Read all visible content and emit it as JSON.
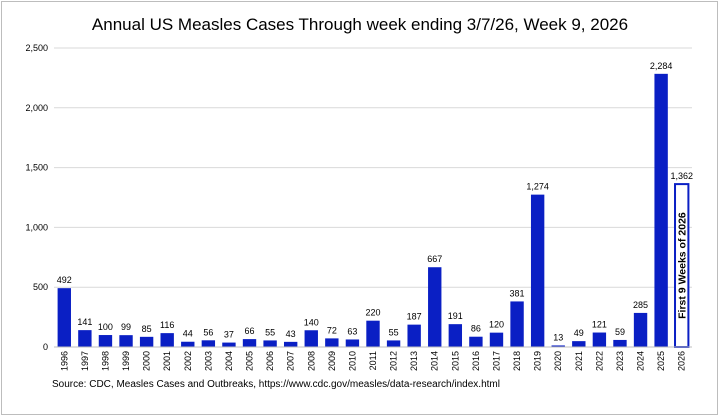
{
  "chart_data": {
    "type": "bar",
    "title": "Annual US Measles Cases Through week ending 3/7/26, Week 9, 2026",
    "categories": [
      "1996",
      "1997",
      "1998",
      "1999",
      "2000",
      "2001",
      "2002",
      "2003",
      "2004",
      "2005",
      "2006",
      "2007",
      "2008",
      "2009",
      "2010",
      "2011",
      "2012",
      "2013",
      "2014",
      "2015",
      "2016",
      "2017",
      "2018",
      "2019",
      "2020",
      "2021",
      "2022",
      "2023",
      "2024",
      "2025",
      "2026"
    ],
    "values": [
      492,
      141,
      100,
      99,
      85,
      116,
      44,
      56,
      37,
      66,
      55,
      43,
      140,
      72,
      63,
      220,
      55,
      187,
      667,
      191,
      86,
      120,
      381,
      1274,
      13,
      49,
      121,
      59,
      285,
      2284,
      1362
    ],
    "value_labels": [
      "492",
      "141",
      "100",
      "99",
      "85",
      "116",
      "44",
      "56",
      "37",
      "66",
      "55",
      "43",
      "140",
      "72",
      "63",
      "220",
      "55",
      "187",
      "667",
      "191",
      "86",
      "120",
      "381",
      "1,274",
      "13",
      "49",
      "121",
      "59",
      "285",
      "2,284",
      "1,362"
    ],
    "yticks": [
      0,
      500,
      1000,
      1500,
      2000,
      2500
    ],
    "ytick_labels": [
      "0",
      "500",
      "1,000",
      "1,500",
      "2,000",
      "2,500"
    ],
    "ylim": [
      0,
      2500
    ],
    "xlabel": "",
    "ylabel": "",
    "grid": true,
    "colors": {
      "bar": "#0a1fc4",
      "partial_bar_fill": "#ffffff",
      "partial_bar_stroke": "#0a1fc4",
      "grid": "#d9d9d9"
    },
    "partial_bar_category": "2026",
    "annotation": "First 9 Weeks of 2026",
    "source": "Source: CDC, Measles Cases and Outbreaks, https://www.cdc.gov/measles/data-research/index.html"
  }
}
